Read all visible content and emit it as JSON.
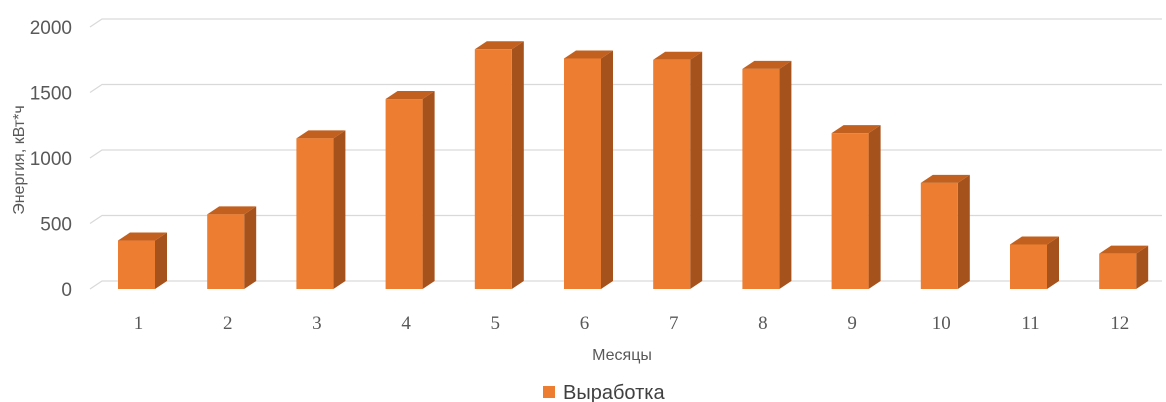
{
  "chart_data": {
    "type": "bar",
    "style": "3d-column",
    "categories": [
      "1",
      "2",
      "3",
      "4",
      "5",
      "6",
      "7",
      "8",
      "9",
      "10",
      "11",
      "12"
    ],
    "series": [
      {
        "name": "Выработка",
        "color": "#ED7D31",
        "values": [
          370,
          570,
          1150,
          1450,
          1830,
          1760,
          1750,
          1680,
          1190,
          810,
          340,
          270
        ]
      }
    ],
    "yticks": [
      "0",
      "500",
      "1000",
      "1500",
      "2000"
    ],
    "ylim": [
      0,
      2000
    ],
    "xlabel": "Месяцы",
    "ylabel": "Энергия, кВт*ч",
    "grid": true,
    "legend": "bottom"
  }
}
